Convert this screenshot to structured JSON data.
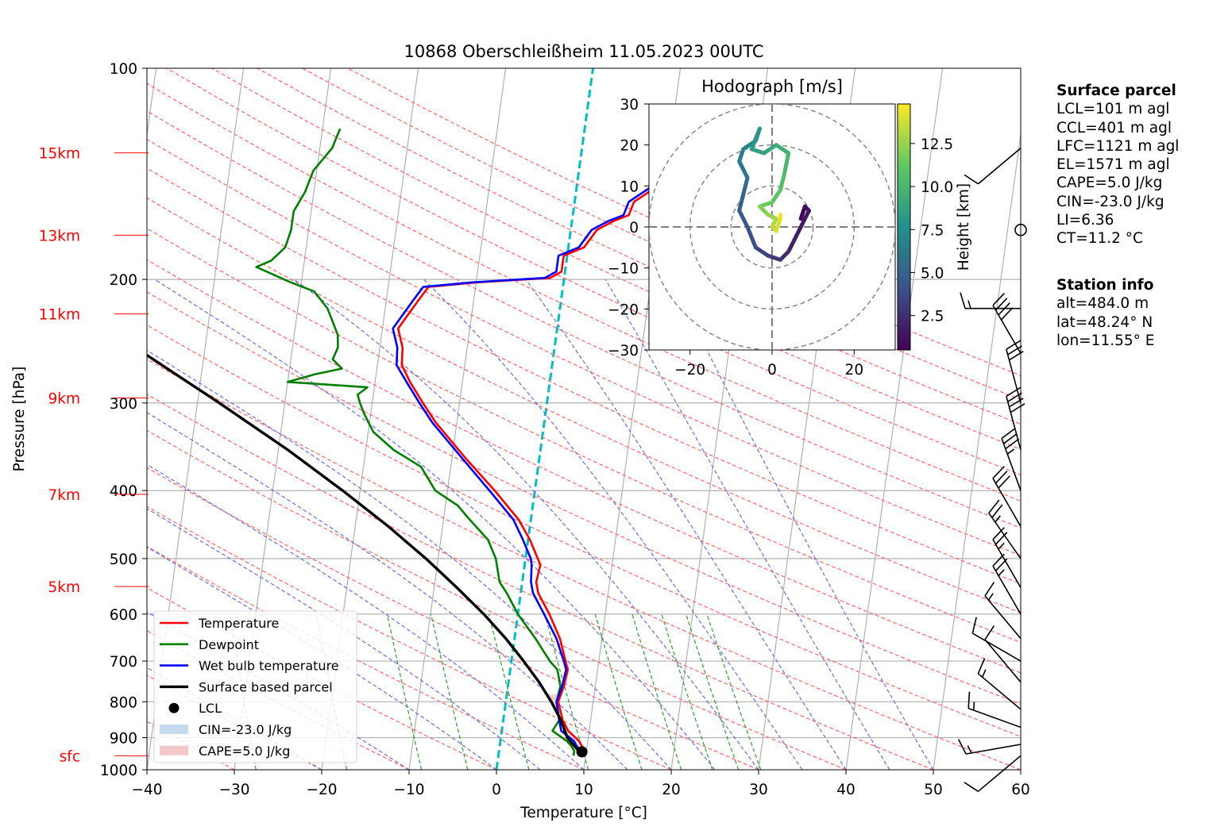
{
  "title": "10868 Oberschleißheim 11.05.2023 00UTC",
  "colors": {
    "temperature": "#ff0000",
    "dewpoint": "#008000",
    "wetbulb": "#0000ff",
    "parcel": "#000000",
    "dry_adiabat": "#ff6666",
    "moist_adiabat": "#6b6bf0",
    "mixing_ratio": "#2ca02c",
    "isotherm_zero": "#00bfbf",
    "cin_fill": "#c6dbef",
    "cape_fill": "#f4c7c7"
  },
  "chart_data": {
    "type": "skewt-logp",
    "title": "10868 Oberschleißheim 11.05.2023 00UTC",
    "xlabel": "Temperature [°C]",
    "ylabel": "Pressure [hPa]",
    "xlim": [
      -40,
      60
    ],
    "ylim": [
      1000,
      100
    ],
    "y_scale": "log",
    "grid": true,
    "x_ticks": [
      "−40",
      "−30",
      "−20",
      "−10",
      "0",
      "10",
      "20",
      "30",
      "40",
      "50",
      "60"
    ],
    "y_ticks": [
      "100",
      "200",
      "300",
      "400",
      "500",
      "600",
      "700",
      "800",
      "900",
      "1000"
    ],
    "height_labels": [
      {
        "label": "15km",
        "p": 132
      },
      {
        "label": "13km",
        "p": 173
      },
      {
        "label": "11km",
        "p": 224
      },
      {
        "label": "9km",
        "p": 295
      },
      {
        "label": "7km",
        "p": 405
      },
      {
        "label": "5km",
        "p": 548
      },
      {
        "label": "sfc",
        "p": 955
      }
    ],
    "series": [
      {
        "name": "Temperature",
        "points": [
          [
            955,
            9.8
          ],
          [
            940,
            10.0
          ],
          [
            925,
            9.4
          ],
          [
            910,
            9.0
          ],
          [
            880,
            7.6
          ],
          [
            850,
            6.8
          ],
          [
            800,
            6.0
          ],
          [
            760,
            6.4
          ],
          [
            720,
            6.6
          ],
          [
            700,
            6.2
          ],
          [
            650,
            5.2
          ],
          [
            600,
            3.6
          ],
          [
            560,
            2.0
          ],
          [
            540,
            1.6
          ],
          [
            510,
            1.8
          ],
          [
            500,
            1.4
          ],
          [
            470,
            0.2
          ],
          [
            440,
            -1.4
          ],
          [
            400,
            -4.6
          ],
          [
            360,
            -8.4
          ],
          [
            320,
            -12.4
          ],
          [
            300,
            -14.2
          ],
          [
            280,
            -16.0
          ],
          [
            265,
            -17.2
          ],
          [
            250,
            -17.4
          ],
          [
            235,
            -18.2
          ],
          [
            215,
            -16.4
          ],
          [
            205,
            -15.4
          ],
          [
            202,
            -10.0
          ],
          [
            199,
            -1.6
          ],
          [
            195,
            -0.4
          ],
          [
            185,
            -0.4
          ],
          [
            180,
            1.8
          ],
          [
            170,
            3.0
          ],
          [
            165,
            4.8
          ],
          [
            162,
            6.4
          ],
          [
            155,
            6.8
          ],
          [
            148,
            9.0
          ],
          [
            140,
            11.2
          ],
          [
            135,
            12.6
          ],
          [
            130,
            14.6
          ]
        ]
      },
      {
        "name": "Dewpoint",
        "points": [
          [
            955,
            8.6
          ],
          [
            940,
            8.6
          ],
          [
            925,
            8.2
          ],
          [
            910,
            7.6
          ],
          [
            880,
            5.8
          ],
          [
            850,
            6.4
          ],
          [
            800,
            5.8
          ],
          [
            760,
            6.0
          ],
          [
            720,
            5.4
          ],
          [
            700,
            4.4
          ],
          [
            650,
            2.4
          ],
          [
            600,
            0.0
          ],
          [
            560,
            -1.6
          ],
          [
            540,
            -2.6
          ],
          [
            500,
            -3.4
          ],
          [
            470,
            -4.6
          ],
          [
            440,
            -7.0
          ],
          [
            420,
            -8.6
          ],
          [
            400,
            -11.4
          ],
          [
            370,
            -13.4
          ],
          [
            350,
            -16.8
          ],
          [
            330,
            -19.4
          ],
          [
            310,
            -20.8
          ],
          [
            300,
            -21.4
          ],
          [
            292,
            -21.8
          ],
          [
            285,
            -20.8
          ],
          [
            280,
            -30.0
          ],
          [
            273,
            -27.0
          ],
          [
            268,
            -24.0
          ],
          [
            260,
            -25.2
          ],
          [
            250,
            -24.8
          ],
          [
            240,
            -25.0
          ],
          [
            220,
            -26.6
          ],
          [
            208,
            -28.4
          ],
          [
            202,
            -31.2
          ],
          [
            192,
            -35.4
          ],
          [
            188,
            -33.8
          ],
          [
            180,
            -32.4
          ],
          [
            170,
            -32.0
          ],
          [
            160,
            -32.0
          ],
          [
            150,
            -31.0
          ],
          [
            140,
            -30.4
          ],
          [
            130,
            -28.6
          ],
          [
            122,
            -28.0
          ]
        ]
      },
      {
        "name": "Wet bulb temperature",
        "points": [
          [
            955,
            9.2
          ],
          [
            940,
            9.4
          ],
          [
            925,
            8.8
          ],
          [
            910,
            8.4
          ],
          [
            880,
            6.8
          ],
          [
            850,
            6.4
          ],
          [
            800,
            5.8
          ],
          [
            760,
            6.2
          ],
          [
            720,
            6.4
          ],
          [
            700,
            6.0
          ],
          [
            650,
            4.8
          ],
          [
            600,
            3.0
          ],
          [
            560,
            1.4
          ],
          [
            540,
            1.0
          ],
          [
            510,
            0.8
          ],
          [
            500,
            0.6
          ],
          [
            470,
            -0.6
          ],
          [
            440,
            -2.0
          ],
          [
            400,
            -5.2
          ],
          [
            360,
            -8.8
          ],
          [
            320,
            -12.8
          ],
          [
            300,
            -14.6
          ],
          [
            280,
            -16.4
          ],
          [
            265,
            -17.8
          ],
          [
            250,
            -18.0
          ],
          [
            235,
            -18.8
          ],
          [
            215,
            -17.0
          ],
          [
            205,
            -16.0
          ],
          [
            202,
            -10.6
          ],
          [
            199,
            -2.2
          ],
          [
            195,
            -1.0
          ],
          [
            185,
            -1.0
          ],
          [
            180,
            1.2
          ],
          [
            170,
            2.4
          ],
          [
            165,
            4.2
          ],
          [
            162,
            5.8
          ],
          [
            155,
            6.2
          ],
          [
            148,
            8.4
          ],
          [
            140,
            10.6
          ],
          [
            135,
            12.2
          ],
          [
            130,
            14.2
          ]
        ]
      },
      {
        "name": "Surface based parcel",
        "points": [
          [
            955,
            9.8
          ],
          [
            940,
            9.1
          ],
          [
            900,
            7.6
          ],
          [
            850,
            6.6
          ],
          [
            800,
            5.2
          ],
          [
            750,
            3.5
          ],
          [
            700,
            1.4
          ],
          [
            650,
            -1.0
          ],
          [
            600,
            -3.9
          ],
          [
            550,
            -7.4
          ],
          [
            500,
            -11.4
          ],
          [
            450,
            -16.2
          ],
          [
            400,
            -22.0
          ],
          [
            350,
            -28.9
          ],
          [
            300,
            -37.5
          ],
          [
            250,
            -48.0
          ],
          [
            200,
            -60.5
          ],
          [
            150,
            -76.0
          ],
          [
            130,
            -84.0
          ]
        ]
      }
    ],
    "lcl": {
      "label": "LCL",
      "p": 943,
      "t": 9.5
    },
    "legend": {
      "placement": "lower-left",
      "entries": [
        "Temperature",
        "Dewpoint",
        "Wet bulb temperature",
        "Surface based parcel",
        "LCL",
        "CIN=-23.0 J/kg",
        "CAPE=5.0 J/kg"
      ]
    },
    "wind_barbs": [
      {
        "p": 955,
        "dir": 230,
        "kt": 10
      },
      {
        "p": 920,
        "dir": 260,
        "kt": 15
      },
      {
        "p": 870,
        "dir": 290,
        "kt": 15
      },
      {
        "p": 820,
        "dir": 310,
        "kt": 15
      },
      {
        "p": 750,
        "dir": 320,
        "kt": 10
      },
      {
        "p": 700,
        "dir": 300,
        "kt": 10
      },
      {
        "p": 650,
        "dir": 320,
        "kt": 15
      },
      {
        "p": 600,
        "dir": 330,
        "kt": 25
      },
      {
        "p": 550,
        "dir": 330,
        "kt": 25
      },
      {
        "p": 500,
        "dir": 325,
        "kt": 25
      },
      {
        "p": 450,
        "dir": 330,
        "kt": 30
      },
      {
        "p": 400,
        "dir": 340,
        "kt": 35
      },
      {
        "p": 350,
        "dir": 345,
        "kt": 40
      },
      {
        "p": 300,
        "dir": 345,
        "kt": 30
      },
      {
        "p": 255,
        "dir": 330,
        "kt": 40
      },
      {
        "p": 220,
        "dir": 270,
        "kt": 15
      },
      {
        "p": 170,
        "dir": 0,
        "kt": 0
      },
      {
        "p": 130,
        "dir": 230,
        "kt": 10
      }
    ],
    "hodograph": {
      "title": "Hodograph [m/s]",
      "xlim": [
        -30,
        30
      ],
      "ylim": [
        -30,
        30
      ],
      "x_ticks": [
        "−20",
        "0",
        "20"
      ],
      "y_ticks": [
        "30",
        "20",
        "10",
        "0",
        "−10",
        "−20",
        "−30"
      ],
      "rings": [
        10,
        20,
        30
      ],
      "colorbar": {
        "label": "Height [km]",
        "ticks": [
          "2.5",
          "5.0",
          "7.5",
          "10.0",
          "12.5"
        ],
        "range": [
          0.5,
          14.8
        ]
      },
      "points": [
        [
          7,
          2,
          0.5
        ],
        [
          8,
          5,
          1.0
        ],
        [
          9,
          4,
          1.5
        ],
        [
          6,
          -2,
          2.0
        ],
        [
          4,
          -6,
          2.5
        ],
        [
          2,
          -8,
          3.0
        ],
        [
          -1,
          -7,
          3.5
        ],
        [
          -4,
          -5,
          4.0
        ],
        [
          -6,
          0,
          4.5
        ],
        [
          -8,
          4,
          5.0
        ],
        [
          -7,
          8,
          5.5
        ],
        [
          -6,
          12,
          6.0
        ],
        [
          -8,
          16,
          6.5
        ],
        [
          -7,
          19,
          7.0
        ],
        [
          -4,
          21,
          7.5
        ],
        [
          -3,
          24,
          8.0
        ],
        [
          -5,
          19,
          8.5
        ],
        [
          -2,
          18,
          9.0
        ],
        [
          1,
          20,
          9.5
        ],
        [
          4,
          18,
          10.0
        ],
        [
          3,
          13,
          10.5
        ],
        [
          2,
          9,
          11.0
        ],
        [
          0,
          6,
          11.5
        ],
        [
          -3,
          5,
          12.0
        ],
        [
          -1,
          3,
          12.5
        ],
        [
          1,
          2,
          13.0
        ],
        [
          0,
          0,
          13.5
        ],
        [
          1,
          -1,
          14.0
        ],
        [
          2,
          2,
          14.5
        ],
        [
          2,
          3,
          14.8
        ]
      ]
    }
  },
  "side": {
    "surface_header": "Surface parcel",
    "surface_lines": [
      "LCL=101 m agl",
      "CCL=401 m agl",
      "LFC=1121 m agl",
      "EL=1571 m agl",
      "CAPE=5.0 J/kg",
      "CIN=-23.0 J/kg",
      "LI=6.36",
      "CT=11.2 °C"
    ],
    "station_header": "Station info",
    "station_lines": [
      "alt=484.0 m",
      "lat=48.24° N",
      "lon=11.55° E"
    ]
  }
}
